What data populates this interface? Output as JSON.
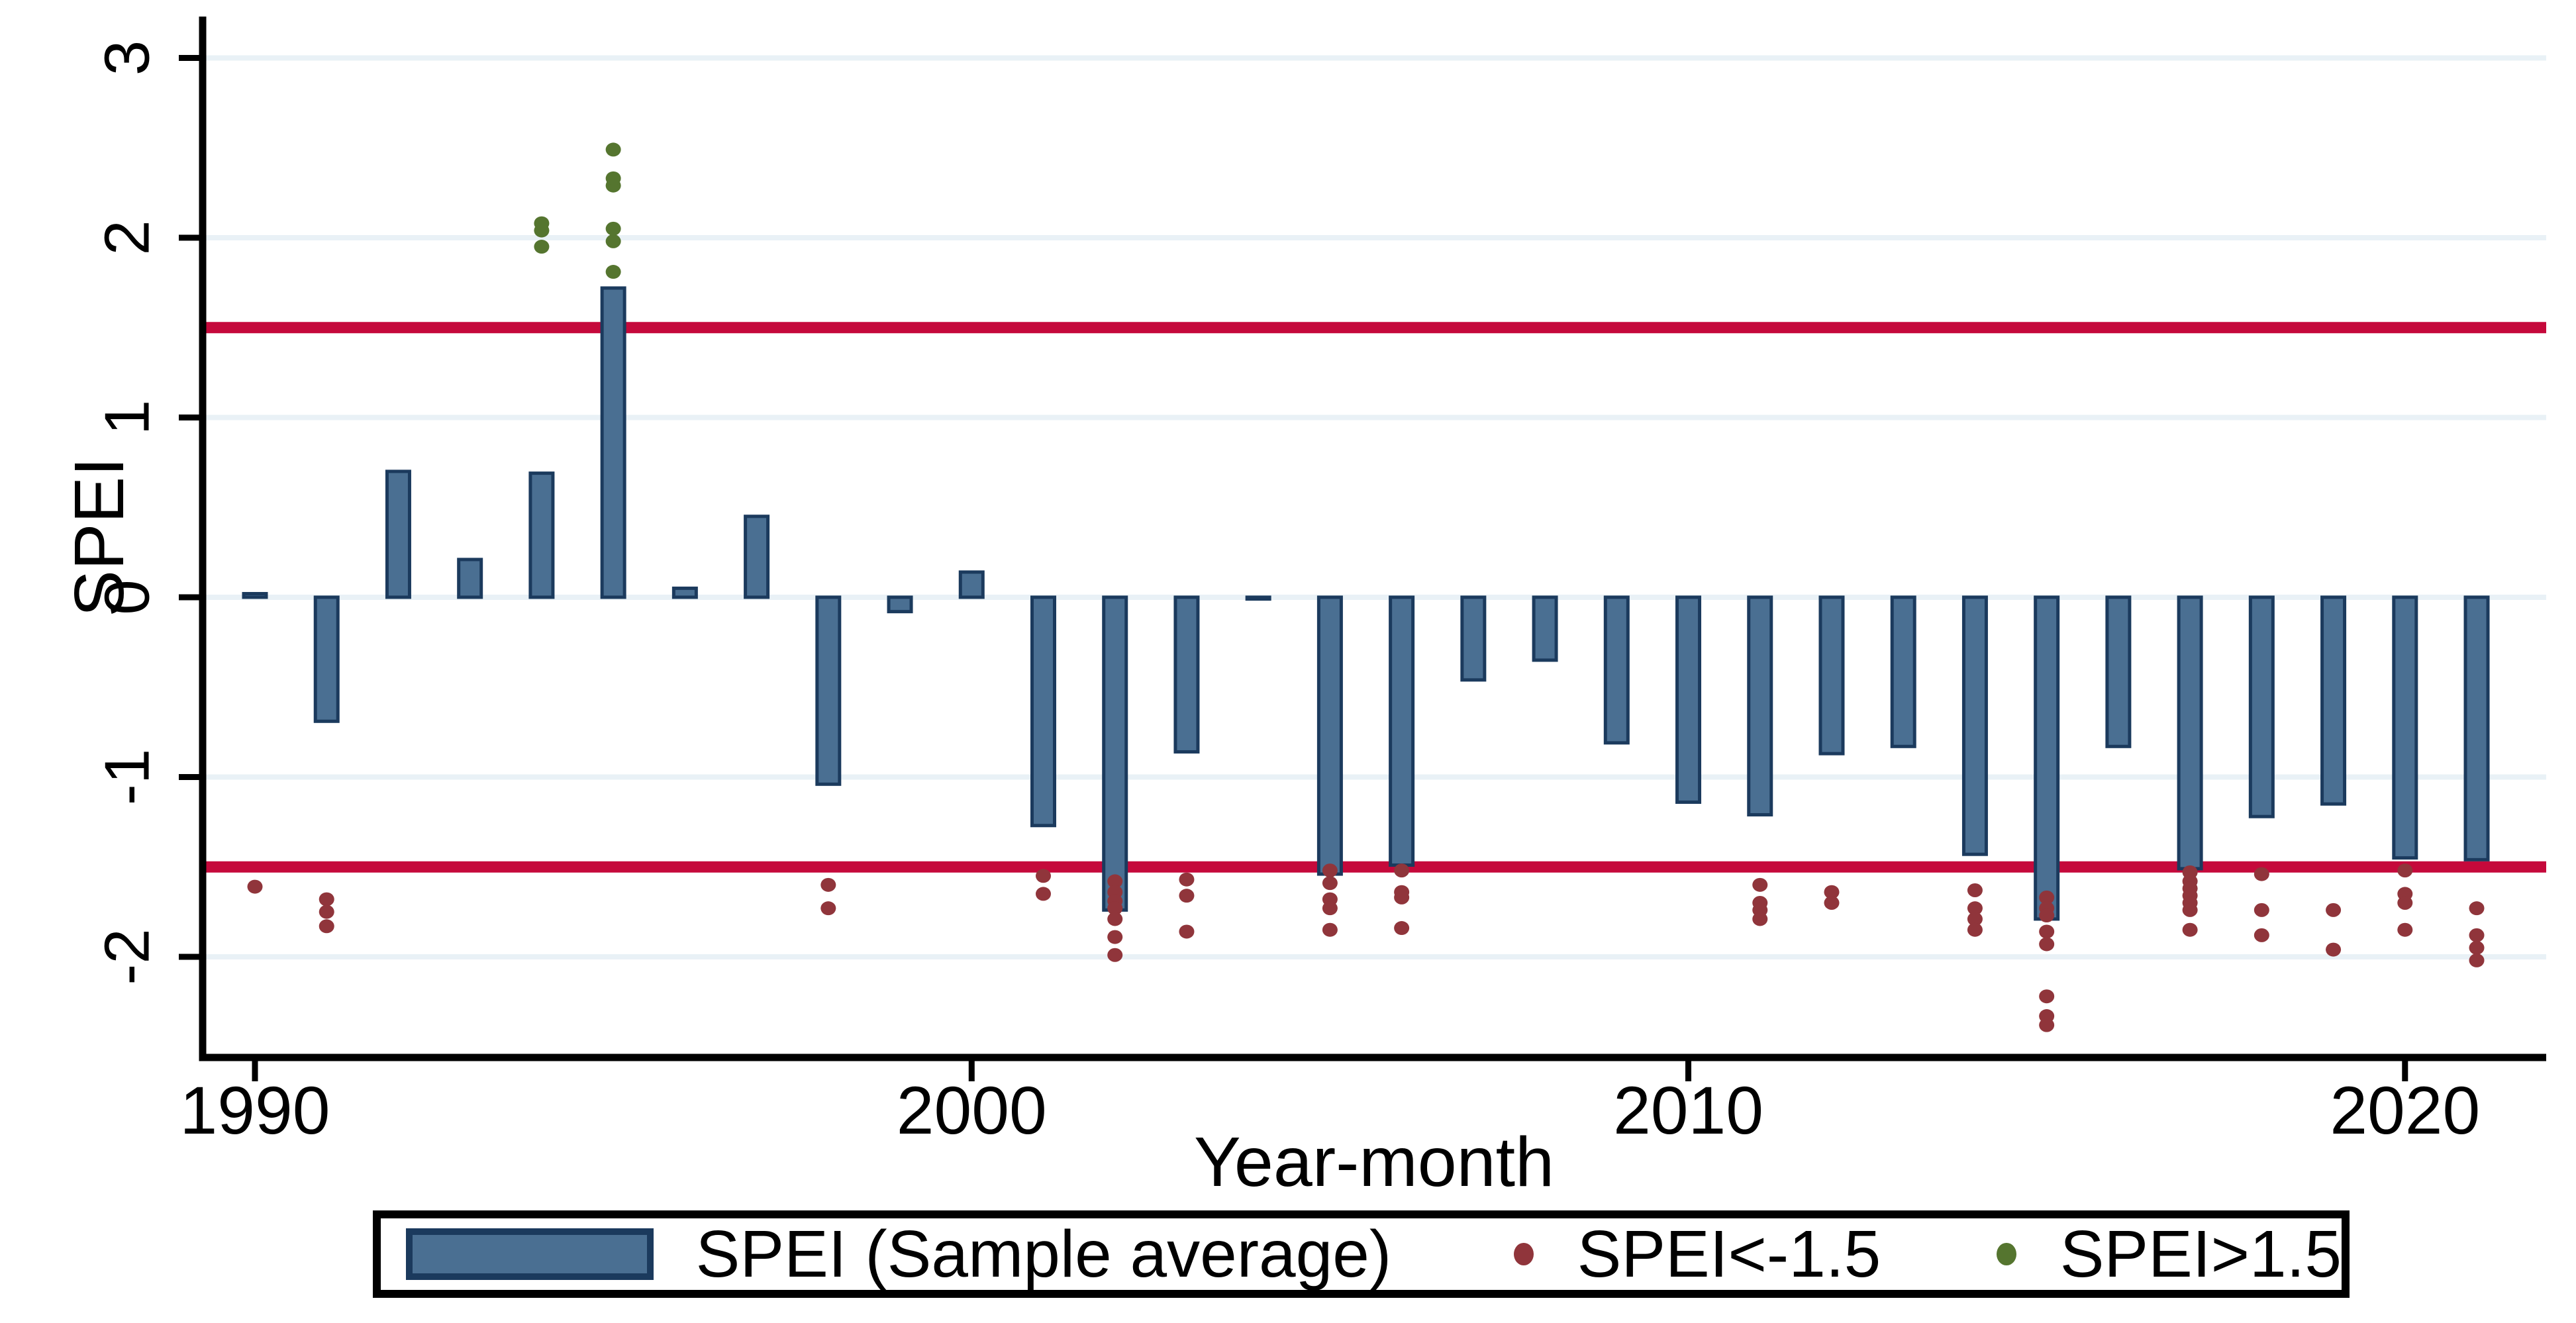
{
  "chart_data": {
    "type": "bar",
    "title": "",
    "xlabel": "Year-month",
    "ylabel": "SPEI",
    "x_ticks": [
      1990,
      2000,
      2010,
      2020
    ],
    "y_ticks": [
      -2,
      -1,
      0,
      1,
      2,
      3
    ],
    "xlim": [
      1989.27,
      2021.97
    ],
    "ylim": [
      -2.56,
      3.23
    ],
    "grid": "horizontal light gridlines at integer SPEI values",
    "legend_position": "bottom",
    "background": "#ffffff",
    "reference_lines": [
      {
        "y": 1.5,
        "color": "#C5093B"
      },
      {
        "y": -1.5,
        "color": "#C5093B"
      }
    ],
    "bars": {
      "name": "SPEI (Sample average)",
      "fill": "#4A6F92",
      "border": "#1B3A5D",
      "categories": [
        1990,
        1991,
        1992,
        1993,
        1994,
        1995,
        1996,
        1997,
        1998,
        1999,
        2000,
        2001,
        2002,
        2003,
        2004,
        2005,
        2006,
        2007,
        2008,
        2009,
        2010,
        2011,
        2012,
        2013,
        2014,
        2015,
        2016,
        2017,
        2018,
        2019,
        2020,
        2021
      ],
      "values": [
        0.02,
        -0.69,
        0.7,
        0.21,
        0.69,
        1.72,
        0.05,
        0.45,
        -1.04,
        -0.08,
        0.14,
        -1.27,
        -1.74,
        -0.86,
        -0.01,
        -1.54,
        -1.49,
        -0.46,
        -0.35,
        -0.81,
        -1.14,
        -1.21,
        -0.87,
        -0.83,
        -1.43,
        -1.79,
        -0.83,
        -1.51,
        -1.22,
        -1.15,
        -1.45,
        -1.46
      ]
    },
    "scatter_low": {
      "name": "SPEI<-1.5",
      "color": "#90353B",
      "points": [
        {
          "year": 1990,
          "values": [
            -1.61
          ]
        },
        {
          "year": 1991,
          "values": [
            -1.68,
            -1.75,
            -1.83
          ]
        },
        {
          "year": 1998,
          "values": [
            -1.6,
            -1.73
          ]
        },
        {
          "year": 2001,
          "values": [
            -1.55,
            -1.65
          ]
        },
        {
          "year": 2002,
          "values": [
            -1.58,
            -1.64,
            -1.69,
            -1.73,
            -1.79,
            -1.89,
            -1.99
          ]
        },
        {
          "year": 2003,
          "values": [
            -1.57,
            -1.66,
            -1.86
          ]
        },
        {
          "year": 2005,
          "values": [
            -1.52,
            -1.59,
            -1.68,
            -1.73,
            -1.85
          ]
        },
        {
          "year": 2006,
          "values": [
            -1.52,
            -1.64,
            -1.67,
            -1.84
          ]
        },
        {
          "year": 2011,
          "values": [
            -1.6,
            -1.7,
            -1.74,
            -1.79
          ]
        },
        {
          "year": 2012,
          "values": [
            -1.64,
            -1.7
          ]
        },
        {
          "year": 2014,
          "values": [
            -1.63,
            -1.73,
            -1.79,
            -1.85
          ]
        },
        {
          "year": 2015,
          "values": [
            -1.67,
            -1.73,
            -1.77,
            -1.86,
            -1.93,
            -2.22,
            -2.33,
            -2.38
          ]
        },
        {
          "year": 2017,
          "values": [
            -1.53,
            -1.58,
            -1.62,
            -1.66,
            -1.7,
            -1.74,
            -1.85
          ]
        },
        {
          "year": 2018,
          "values": [
            -1.54,
            -1.74,
            -1.88
          ]
        },
        {
          "year": 2019,
          "values": [
            -1.74,
            -1.96
          ]
        },
        {
          "year": 2020,
          "values": [
            -1.52,
            -1.65,
            -1.7,
            -1.85
          ]
        },
        {
          "year": 2021,
          "values": [
            -1.73,
            -1.88,
            -1.95,
            -2.02
          ]
        }
      ]
    },
    "scatter_high": {
      "name": "SPEI>1.5",
      "color": "#55752F",
      "points": [
        {
          "year": 1994,
          "values": [
            1.95,
            2.04,
            2.08
          ]
        },
        {
          "year": 1995,
          "values": [
            1.81,
            1.98,
            2.05,
            2.29,
            2.33,
            2.49
          ]
        }
      ]
    }
  }
}
